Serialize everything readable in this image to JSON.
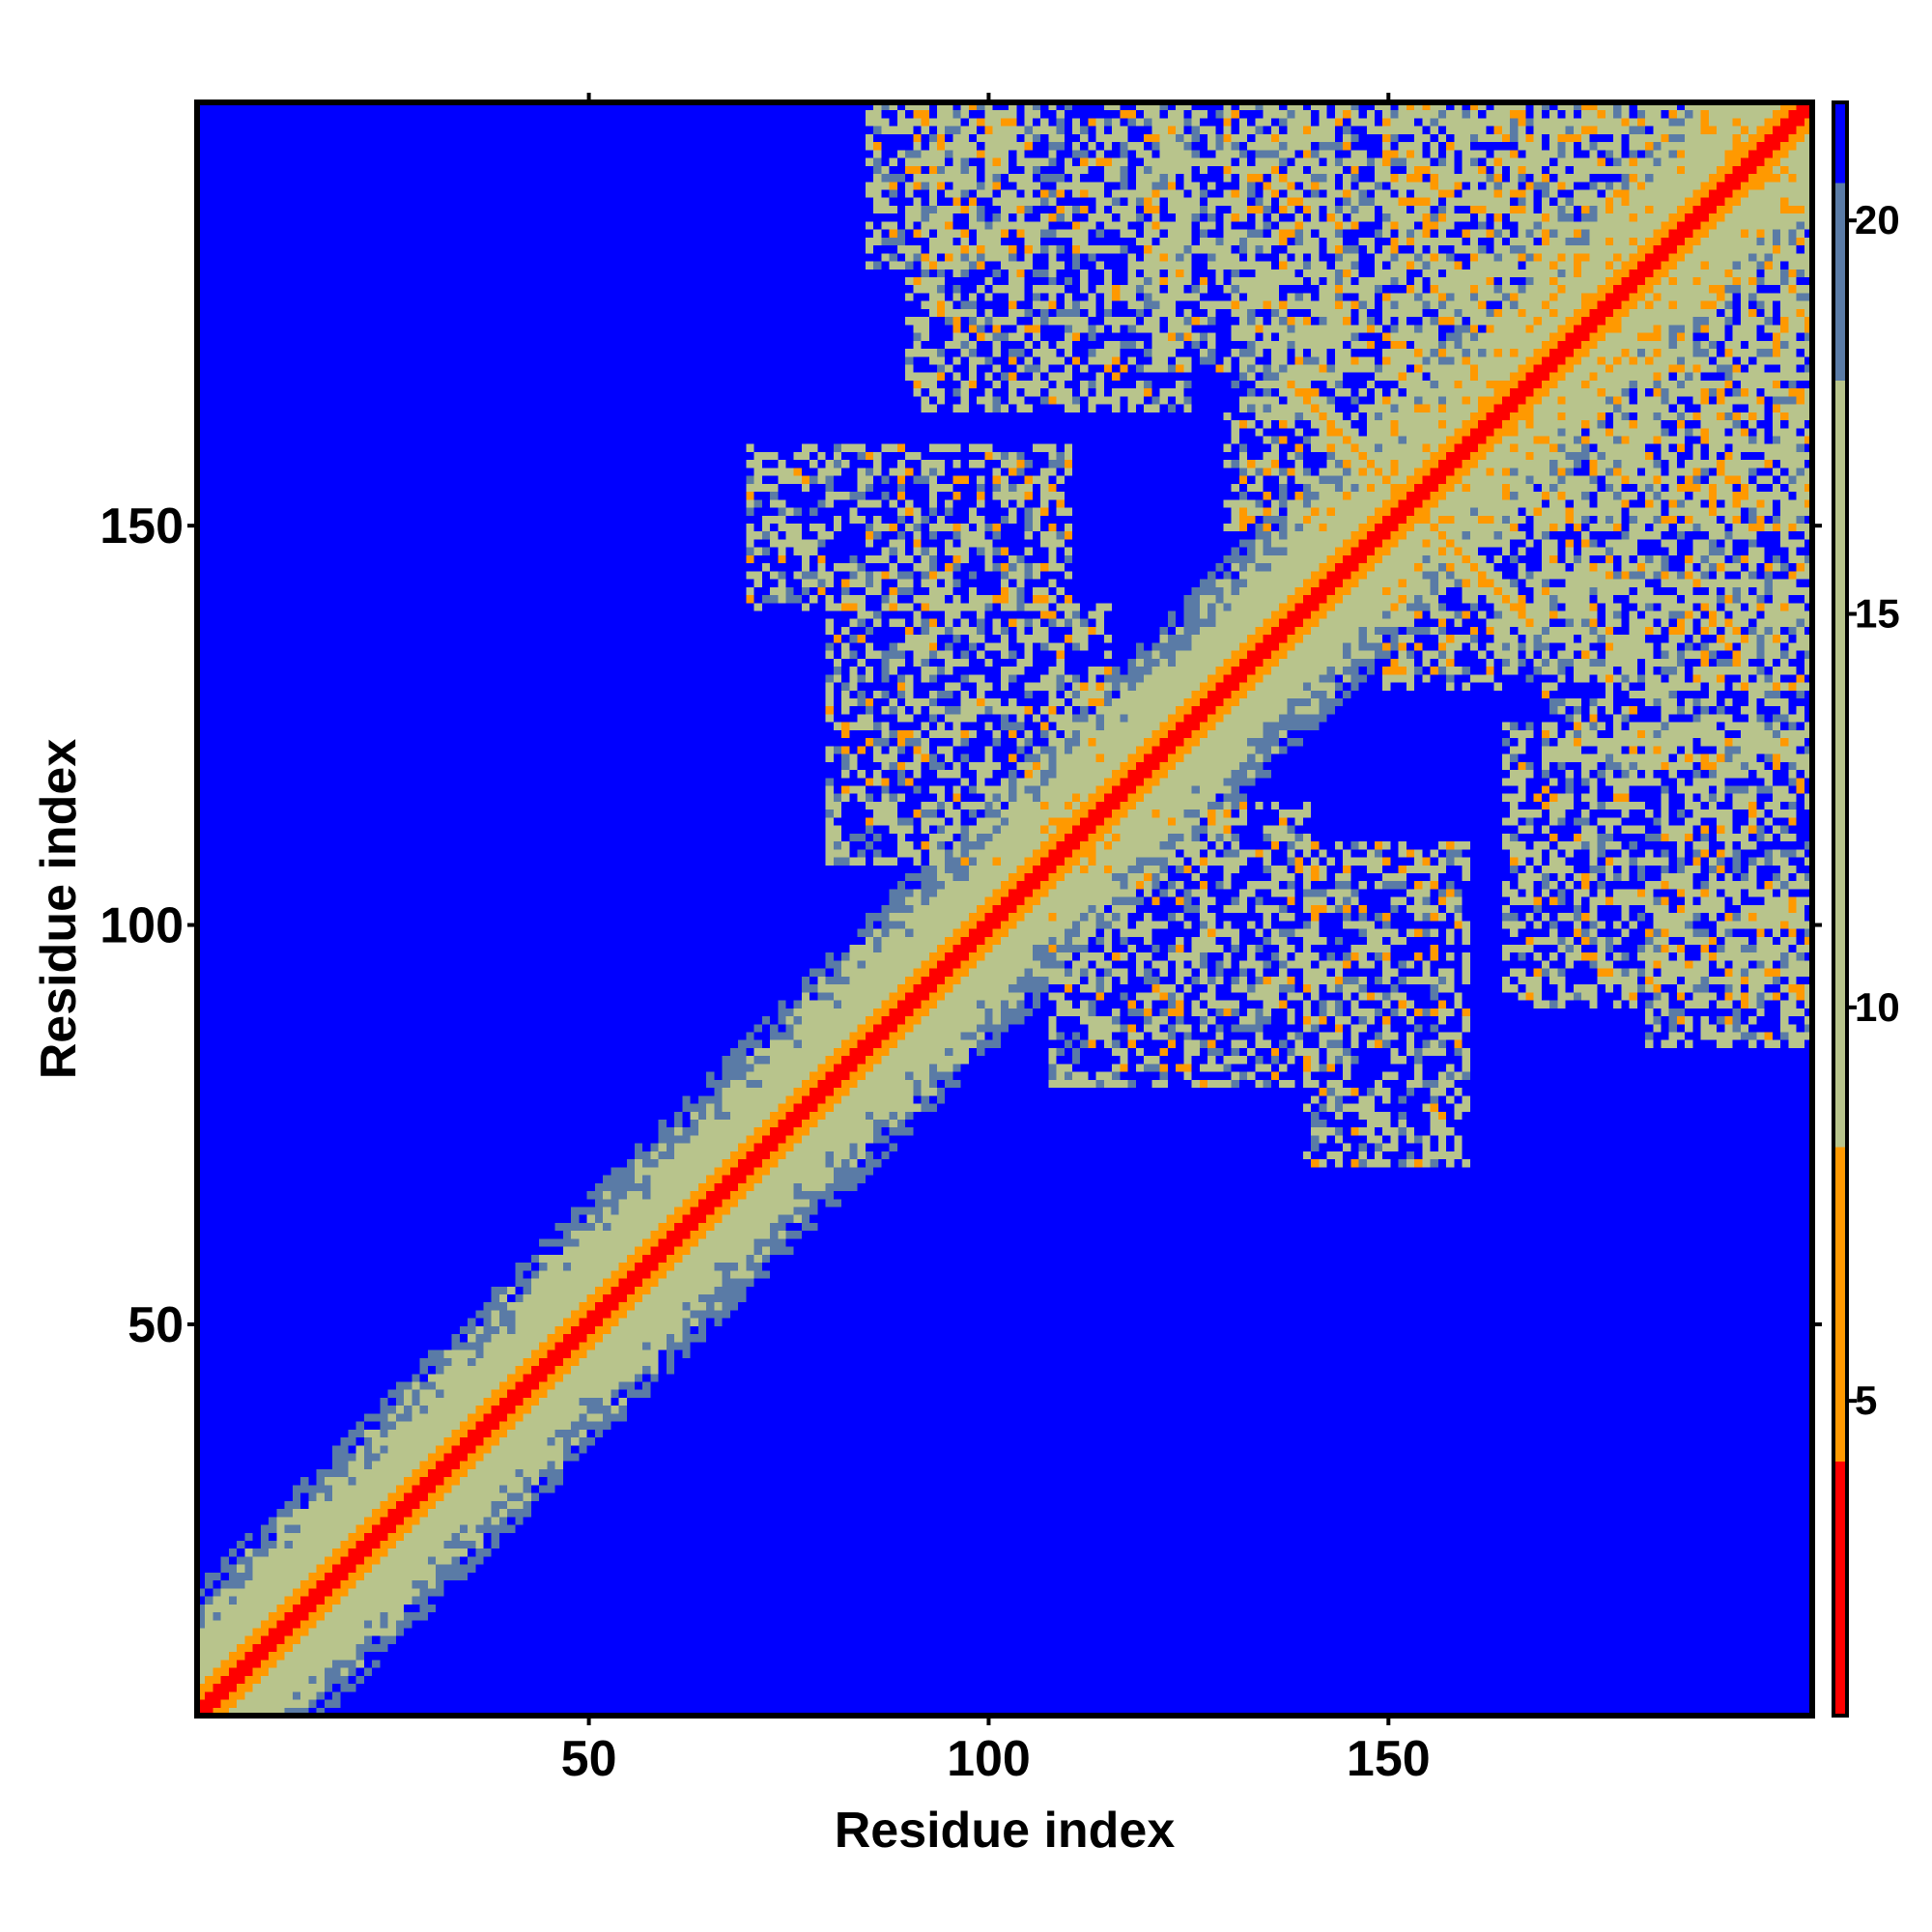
{
  "chart_data": {
    "type": "heatmap",
    "title": "",
    "xlabel": "Residue index",
    "ylabel": "Residue index",
    "n_residues": 203,
    "xlim": [
      1,
      203
    ],
    "ylim": [
      1,
      203
    ],
    "x_ticks": [
      50,
      100,
      150
    ],
    "y_ticks": [
      50,
      100,
      150
    ],
    "colorbar": {
      "range": [
        1,
        21.5
      ],
      "ticks": [
        5,
        10,
        15,
        20
      ],
      "colors": {
        "near": "#ff0000",
        "mid": "#ff9900",
        "light": "#b8c48c",
        "far_grey": "#5a7ba6",
        "background": "#0000ff"
      }
    },
    "contact_regions": [
      {
        "kind": "diagonal-band",
        "from": 1,
        "to": 203,
        "width": 4
      },
      {
        "kind": "off-diagonal",
        "x_range": [
          70,
          110
        ],
        "y_range": [
          140,
          160
        ]
      },
      {
        "kind": "off-diagonal",
        "x_range": [
          108,
          140
        ],
        "y_range": [
          80,
          115
        ]
      },
      {
        "kind": "off-diagonal",
        "x_range": [
          85,
          105
        ],
        "y_range": [
          183,
          203
        ]
      },
      {
        "kind": "off-diagonal",
        "x_range": [
          120,
          145
        ],
        "y_range": [
          170,
          203
        ]
      },
      {
        "kind": "off-diagonal",
        "x_range": [
          150,
          203
        ],
        "y_range": [
          130,
          203
        ]
      },
      {
        "kind": "off-diagonal",
        "x_range": [
          165,
          203
        ],
        "y_range": [
          90,
          125
        ]
      },
      {
        "kind": "anti-diagonal",
        "x_range": [
          138,
          168
        ],
        "y_range": [
          138,
          168
        ]
      }
    ]
  }
}
